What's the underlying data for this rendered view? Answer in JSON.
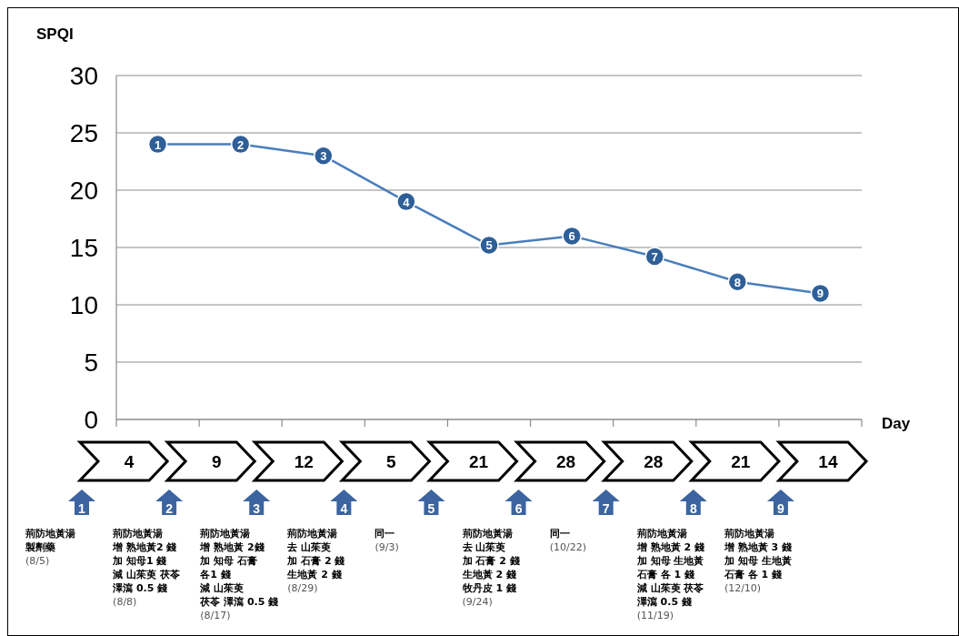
{
  "chart_data": {
    "type": "line",
    "ylabel": "SPQI",
    "xlabel": "Day",
    "categories": [
      null,
      null,
      null,
      null,
      null,
      null,
      null,
      null,
      null
    ],
    "values": [
      24,
      24,
      23,
      19,
      15.2,
      16,
      14.2,
      12,
      11
    ],
    "color": "#4a7ebb",
    "marker": "circle",
    "grid": "y",
    "ylim": [
      0,
      30
    ],
    "yticks": [
      0,
      5,
      10,
      15,
      20,
      25,
      30
    ],
    "annotations": [
      {
        "text": "1",
        "y": 24
      },
      {
        "text": "2",
        "y": 24
      },
      {
        "text": "3",
        "y": 23
      },
      {
        "text": "4",
        "y": 19
      },
      {
        "text": "5",
        "y": 15.2
      },
      {
        "text": "6",
        "y": 16
      },
      {
        "text": "7",
        "y": 14.2
      },
      {
        "text": "8",
        "y": 12
      },
      {
        "text": "9",
        "y": 11
      },
      "4",
      "9",
      "12",
      "5",
      "21",
      "28",
      "28",
      "21",
      "14",
      "1",
      "2",
      "3",
      "4",
      "5",
      "6",
      "7",
      "8",
      "9",
      "荊防地黃湯",
      "製劑藥",
      "(8/5)",
      "荊防地黃湯",
      "增 熟地黃2 錢",
      "加 知母1 錢",
      "減 山茱萸 茯苓",
      "澤瀉 0.5 錢",
      "(8/8)",
      "荊防地黃湯",
      "增 熟地黃 2錢",
      "加 知母 石膏",
      "各1 錢",
      "減 山茱萸",
      "茯苓 澤瀉 0.5 錢",
      "(8/17)",
      "荊防地黃湯",
      "去 山茱萸",
      "加 石膏 2 錢",
      "生地黃 2 錢",
      "(8/29)",
      "同一",
      "(9/3)",
      "荊防地黃湯",
      "去 山茱萸",
      "加 石膏 2 錢",
      "生地黃 2 錢",
      "牧丹皮 1 錢",
      "(9/24)",
      "同一",
      "(10/22)",
      "荊防地黃湯",
      "增 熟地黃 2 錢",
      "加 知母 生地黃",
      "石膏 各 1 錢",
      "減 山茱萸 茯苓",
      "澤瀉 0.5 錢",
      "(11/19)",
      "荊防地黃湯",
      "增 熟地黃 3 錢",
      "加 知母 生地黃",
      "石膏 各 1 錢",
      "(12/10)"
    ]
  }
}
